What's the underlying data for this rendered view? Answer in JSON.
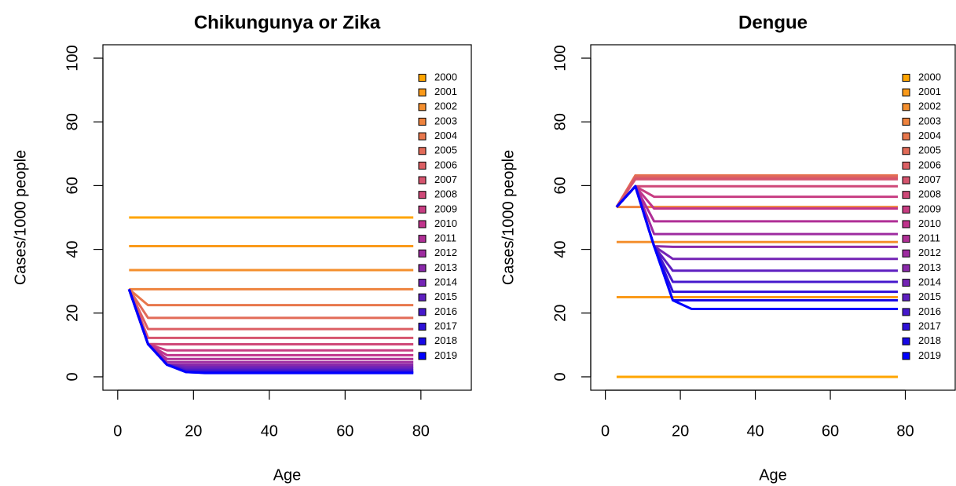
{
  "chart_data": [
    {
      "type": "line",
      "title": "Chikungunya or Zika",
      "xlabel": "Age",
      "ylabel": "Cases/1000 people",
      "x": [
        3,
        8,
        13,
        18,
        23,
        28,
        33,
        38,
        43,
        48,
        53,
        58,
        63,
        68,
        73,
        78
      ],
      "xlim": [
        -3.9,
        93.3
      ],
      "ylim": [
        -4.2,
        104.2
      ],
      "xticks": [
        0,
        20,
        40,
        60,
        80
      ],
      "yticks": [
        0,
        20,
        40,
        60,
        80,
        100
      ],
      "legend": "topright",
      "series": [
        {
          "name": "2000",
          "color": "#FFA500",
          "values": [
            50,
            50,
            50,
            50,
            50,
            50,
            50,
            50,
            50,
            50,
            50,
            50,
            50,
            50,
            50,
            50
          ]
        },
        {
          "name": "2001",
          "color": "#FA9A1A",
          "values": [
            41,
            41,
            41,
            41,
            41,
            41,
            41,
            41,
            41,
            41,
            41,
            41,
            41,
            41,
            41,
            41
          ]
        },
        {
          "name": "2002",
          "color": "#F48F2E",
          "values": [
            33.5,
            33.5,
            33.5,
            33.5,
            33.5,
            33.5,
            33.5,
            33.5,
            33.5,
            33.5,
            33.5,
            33.5,
            33.5,
            33.5,
            33.5,
            33.5
          ]
        },
        {
          "name": "2003",
          "color": "#EE833E",
          "values": [
            27.5,
            27.5,
            27.5,
            27.5,
            27.5,
            27.5,
            27.5,
            27.5,
            27.5,
            27.5,
            27.5,
            27.5,
            27.5,
            27.5,
            27.5,
            27.5
          ]
        },
        {
          "name": "2004",
          "color": "#E8774C",
          "values": [
            27.5,
            22.5,
            22.5,
            22.5,
            22.5,
            22.5,
            22.5,
            22.5,
            22.5,
            22.5,
            22.5,
            22.5,
            22.5,
            22.5,
            22.5,
            22.5
          ]
        },
        {
          "name": "2005",
          "color": "#E26B58",
          "values": [
            27.5,
            18.5,
            18.5,
            18.5,
            18.5,
            18.5,
            18.5,
            18.5,
            18.5,
            18.5,
            18.5,
            18.5,
            18.5,
            18.5,
            18.5,
            18.5
          ]
        },
        {
          "name": "2006",
          "color": "#DC5F64",
          "values": [
            27.5,
            15,
            15,
            15,
            15,
            15,
            15,
            15,
            15,
            15,
            15,
            15,
            15,
            15,
            15,
            15
          ]
        },
        {
          "name": "2007",
          "color": "#D6546E",
          "values": [
            27.5,
            12.2,
            12.2,
            12.2,
            12.2,
            12.2,
            12.2,
            12.2,
            12.2,
            12.2,
            12.2,
            12.2,
            12.2,
            12.2,
            12.2,
            12.2
          ]
        },
        {
          "name": "2008",
          "color": "#CF4878",
          "values": [
            27.5,
            10.3,
            10.2,
            10.2,
            10.2,
            10.2,
            10.2,
            10.2,
            10.2,
            10.2,
            10.2,
            10.2,
            10.2,
            10.2,
            10.2,
            10.2
          ]
        },
        {
          "name": "2009",
          "color": "#C83D82",
          "values": [
            27.5,
            10.3,
            8.3,
            8.3,
            8.3,
            8.3,
            8.3,
            8.3,
            8.3,
            8.3,
            8.3,
            8.3,
            8.3,
            8.3,
            8.3,
            8.3
          ]
        },
        {
          "name": "2010",
          "color": "#C0338C",
          "values": [
            27.5,
            10.3,
            6.8,
            6.8,
            6.8,
            6.8,
            6.8,
            6.8,
            6.8,
            6.8,
            6.8,
            6.8,
            6.8,
            6.8,
            6.8,
            6.8
          ]
        },
        {
          "name": "2011",
          "color": "#B02F96",
          "values": [
            27.5,
            10.3,
            5.6,
            5.6,
            5.6,
            5.6,
            5.6,
            5.6,
            5.6,
            5.6,
            5.6,
            5.6,
            5.6,
            5.6,
            5.6,
            5.6
          ]
        },
        {
          "name": "2012",
          "color": "#9E2CA0",
          "values": [
            27.5,
            10.3,
            4.6,
            4.6,
            4.6,
            4.6,
            4.6,
            4.6,
            4.6,
            4.6,
            4.6,
            4.6,
            4.6,
            4.6,
            4.6,
            4.6
          ]
        },
        {
          "name": "2013",
          "color": "#8A29AA",
          "values": [
            27.5,
            10.3,
            3.8,
            3.8,
            3.8,
            3.8,
            3.8,
            3.8,
            3.8,
            3.8,
            3.8,
            3.8,
            3.8,
            3.8,
            3.8,
            3.8
          ]
        },
        {
          "name": "2014",
          "color": "#7424B5",
          "values": [
            27.5,
            10.3,
            3.8,
            3.1,
            3.1,
            3.1,
            3.1,
            3.1,
            3.1,
            3.1,
            3.1,
            3.1,
            3.1,
            3.1,
            3.1,
            3.1
          ]
        },
        {
          "name": "2015",
          "color": "#5E1FC0",
          "values": [
            27.5,
            10.3,
            3.8,
            2.5,
            2.5,
            2.5,
            2.5,
            2.5,
            2.5,
            2.5,
            2.5,
            2.5,
            2.5,
            2.5,
            2.5,
            2.5
          ]
        },
        {
          "name": "2016",
          "color": "#4618CC",
          "values": [
            27.5,
            10.3,
            3.8,
            2,
            2,
            2,
            2,
            2,
            2,
            2,
            2,
            2,
            2,
            2,
            2,
            2
          ]
        },
        {
          "name": "2017",
          "color": "#2E11D8",
          "values": [
            27.5,
            10.3,
            3.8,
            1.6,
            1.6,
            1.6,
            1.6,
            1.6,
            1.6,
            1.6,
            1.6,
            1.6,
            1.6,
            1.6,
            1.6,
            1.6
          ]
        },
        {
          "name": "2018",
          "color": "#1808E6",
          "values": [
            27.5,
            10.3,
            3.8,
            1.5,
            1.3,
            1.3,
            1.3,
            1.3,
            1.3,
            1.3,
            1.3,
            1.3,
            1.3,
            1.3,
            1.3,
            1.3
          ]
        },
        {
          "name": "2019",
          "color": "#0000FF",
          "values": [
            27.5,
            10.3,
            3.8,
            1.5,
            1.2,
            1.2,
            1.2,
            1.2,
            1.2,
            1.2,
            1.2,
            1.2,
            1.2,
            1.2,
            1.2,
            1.2
          ]
        }
      ]
    },
    {
      "type": "line",
      "title": "Dengue",
      "xlabel": "Age",
      "ylabel": "Cases/1000 people",
      "x": [
        3,
        8,
        13,
        18,
        23,
        28,
        33,
        38,
        43,
        48,
        53,
        58,
        63,
        68,
        73,
        78
      ],
      "xlim": [
        -3.9,
        93.3
      ],
      "ylim": [
        -4.2,
        104.2
      ],
      "xticks": [
        0,
        20,
        40,
        60,
        80
      ],
      "yticks": [
        0,
        20,
        40,
        60,
        80,
        100
      ],
      "legend": "topright",
      "series": [
        {
          "name": "2000",
          "color": "#FFA500",
          "values": [
            0,
            0,
            0,
            0,
            0,
            0,
            0,
            0,
            0,
            0,
            0,
            0,
            0,
            0,
            0,
            0
          ]
        },
        {
          "name": "2001",
          "color": "#FA9A1A",
          "values": [
            25,
            25,
            25,
            25,
            25,
            25,
            25,
            25,
            25,
            25,
            25,
            25,
            25,
            25,
            25,
            25
          ]
        },
        {
          "name": "2002",
          "color": "#F48F2E",
          "values": [
            42.3,
            42.3,
            42.3,
            42.3,
            42.3,
            42.3,
            42.3,
            42.3,
            42.3,
            42.3,
            42.3,
            42.3,
            42.3,
            42.3,
            42.3,
            42.3
          ]
        },
        {
          "name": "2003",
          "color": "#EE833E",
          "values": [
            53.3,
            53.3,
            53.3,
            53.3,
            53.3,
            53.3,
            53.3,
            53.3,
            53.3,
            53.3,
            53.3,
            53.3,
            53.3,
            53.3,
            53.3,
            53.3
          ]
        },
        {
          "name": "2004",
          "color": "#E8774C",
          "values": [
            53.3,
            63.2,
            63.2,
            63.2,
            63.2,
            63.2,
            63.2,
            63.2,
            63.2,
            63.2,
            63.2,
            63.2,
            63.2,
            63.2,
            63.2,
            63.2
          ]
        },
        {
          "name": "2005",
          "color": "#E26B58",
          "values": [
            53.3,
            63,
            63,
            63,
            63,
            63,
            63,
            63,
            63,
            63,
            63,
            63,
            63,
            63,
            63,
            63
          ]
        },
        {
          "name": "2006",
          "color": "#DC5F64",
          "values": [
            53.3,
            62.5,
            62.5,
            62.5,
            62.5,
            62.5,
            62.5,
            62.5,
            62.5,
            62.5,
            62.5,
            62.5,
            62.5,
            62.5,
            62.5,
            62.5
          ]
        },
        {
          "name": "2007",
          "color": "#D6546E",
          "values": [
            53.3,
            62,
            62,
            62,
            62,
            62,
            62,
            62,
            62,
            62,
            62,
            62,
            62,
            62,
            62,
            62
          ]
        },
        {
          "name": "2008",
          "color": "#CF4878",
          "values": [
            53.3,
            59.8,
            59.8,
            59.8,
            59.8,
            59.8,
            59.8,
            59.8,
            59.8,
            59.8,
            59.8,
            59.8,
            59.8,
            59.8,
            59.8,
            59.8
          ]
        },
        {
          "name": "2009",
          "color": "#C83D82",
          "values": [
            53.3,
            59.8,
            56.5,
            56.5,
            56.5,
            56.5,
            56.5,
            56.5,
            56.5,
            56.5,
            56.5,
            56.5,
            56.5,
            56.5,
            56.5,
            56.5
          ]
        },
        {
          "name": "2010",
          "color": "#C0338C",
          "values": [
            53.3,
            59.8,
            52.8,
            52.8,
            52.8,
            52.8,
            52.8,
            52.8,
            52.8,
            52.8,
            52.8,
            52.8,
            52.8,
            52.8,
            52.8,
            52.8
          ]
        },
        {
          "name": "2011",
          "color": "#B02F96",
          "values": [
            53.3,
            59.8,
            48.8,
            48.8,
            48.8,
            48.8,
            48.8,
            48.8,
            48.8,
            48.8,
            48.8,
            48.8,
            48.8,
            48.8,
            48.8,
            48.8
          ]
        },
        {
          "name": "2012",
          "color": "#9E2CA0",
          "values": [
            53.3,
            59.8,
            44.8,
            44.8,
            44.8,
            44.8,
            44.8,
            44.8,
            44.8,
            44.8,
            44.8,
            44.8,
            44.8,
            44.8,
            44.8,
            44.8
          ]
        },
        {
          "name": "2013",
          "color": "#8A29AA",
          "values": [
            53.3,
            59.8,
            41,
            40.8,
            40.8,
            40.8,
            40.8,
            40.8,
            40.8,
            40.8,
            40.8,
            40.8,
            40.8,
            40.8,
            40.8,
            40.8
          ]
        },
        {
          "name": "2014",
          "color": "#7424B5",
          "values": [
            53.3,
            59.8,
            41,
            37,
            37,
            37,
            37,
            37,
            37,
            37,
            37,
            37,
            37,
            37,
            37,
            37
          ]
        },
        {
          "name": "2015",
          "color": "#5E1FC0",
          "values": [
            53.3,
            59.8,
            41,
            33.3,
            33.3,
            33.3,
            33.3,
            33.3,
            33.3,
            33.3,
            33.3,
            33.3,
            33.3,
            33.3,
            33.3,
            33.3
          ]
        },
        {
          "name": "2016",
          "color": "#4618CC",
          "values": [
            53.3,
            59.8,
            41,
            29.8,
            29.8,
            29.8,
            29.8,
            29.8,
            29.8,
            29.8,
            29.8,
            29.8,
            29.8,
            29.8,
            29.8,
            29.8
          ]
        },
        {
          "name": "2017",
          "color": "#2E11D8",
          "values": [
            53.3,
            59.8,
            41,
            26.7,
            26.7,
            26.7,
            26.7,
            26.7,
            26.7,
            26.7,
            26.7,
            26.7,
            26.7,
            26.7,
            26.7,
            26.7
          ]
        },
        {
          "name": "2018",
          "color": "#1808E6",
          "values": [
            53.3,
            59.8,
            41,
            24,
            24,
            24,
            24,
            24,
            24,
            24,
            24,
            24,
            24,
            24,
            24,
            24
          ]
        },
        {
          "name": "2019",
          "color": "#0000FF",
          "values": [
            53.3,
            59.8,
            41,
            24,
            21.3,
            21.3,
            21.3,
            21.3,
            21.3,
            21.3,
            21.3,
            21.3,
            21.3,
            21.3,
            21.3,
            21.3
          ]
        }
      ]
    }
  ]
}
